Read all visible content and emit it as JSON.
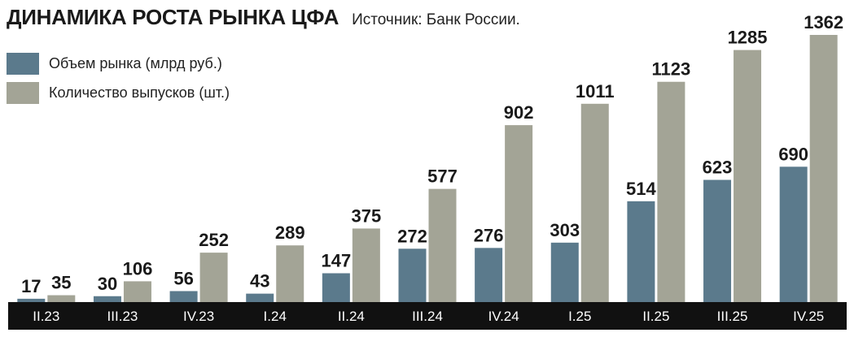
{
  "header": {
    "title": "ДИНАМИКА РОСТА РЫНКА ЦФА",
    "source": "Источник: Банк России."
  },
  "chart_data": {
    "type": "bar",
    "categories": [
      "II.23",
      "III.23",
      "IV.23",
      "I.24",
      "II.24",
      "III.24",
      "IV.24",
      "I.25",
      "II.25",
      "III.25",
      "IV.25"
    ],
    "series": [
      {
        "name": "Объем рынка (млрд руб.)",
        "values": [
          17,
          30,
          56,
          43,
          147,
          272,
          276,
          303,
          514,
          623,
          690
        ],
        "color": "#5b7a8c"
      },
      {
        "name": "Количество выпусков (шт.)",
        "values": [
          35,
          106,
          252,
          289,
          375,
          577,
          902,
          1011,
          1123,
          1285,
          1362
        ],
        "color": "#a3a496"
      }
    ],
    "ylim": [
      0,
      1362
    ],
    "grid": false,
    "legend_position": "top-left",
    "axis_bar_color": "#111111"
  }
}
